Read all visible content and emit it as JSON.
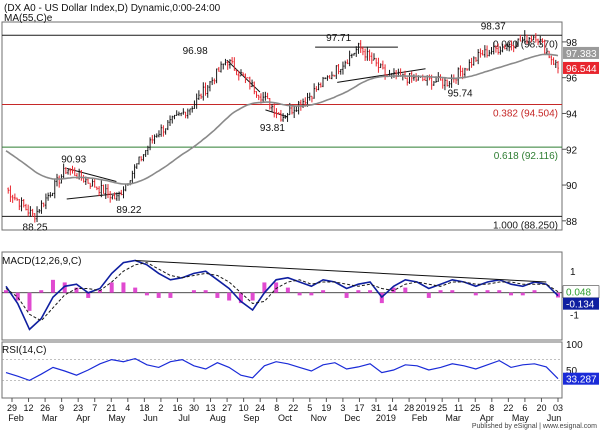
{
  "header": {
    "title": "(DX A0 - US Dollar Index,D) Dynamic,0:00-24:00",
    "ma_label": "MA(55,C)e"
  },
  "footer": {
    "published": "Published by eSignal | www.esignal.com"
  },
  "colors": {
    "up": "#1a1a1a",
    "down": "#e8262e",
    "ma": "#8a8a8a",
    "macd": "#0f1fa0",
    "signal": "#1a1a1a",
    "histogram": "#e04ad0",
    "rsi": "#1a2bd8",
    "fib_line_0": "#1a1a1a",
    "fib_line_382": "#c62828",
    "fib_line_618": "#2e7d32",
    "fib_line_1": "#1a1a1a",
    "last_price_bg": "#e8262e"
  },
  "chart_data": [
    {
      "type": "candlestick",
      "title": "(DX A0 - US Dollar Index,D) Dynamic,0:00-24:00",
      "overlay": "MA(55,C)e",
      "ylim": [
        87.6,
        99.0
      ],
      "ticks": [
        88.0,
        90.0,
        92.0,
        94.0,
        96.0,
        98.0
      ],
      "x_labels": [
        "29",
        "12",
        "26",
        "9",
        "23",
        "7",
        "21",
        "4",
        "18",
        "2",
        "16",
        "30",
        "13",
        "27",
        "10",
        "24",
        "8",
        "22",
        "5",
        "19",
        "3",
        "17",
        "31",
        "14",
        "28",
        "2019",
        "25",
        "11",
        "25",
        "8",
        "22",
        "6",
        "20",
        "03"
      ],
      "month_labels": [
        "Feb",
        "Mar",
        "Apr",
        "May",
        "Jun",
        "Jul",
        "Aug",
        "Sep",
        "Oct",
        "Nov",
        "Dec",
        "2019",
        "Feb",
        "Mar",
        "Apr",
        "May",
        "Jun"
      ],
      "price_labels": {
        "last": "96.544",
        "ma_value": "97.383"
      },
      "fibonacci": [
        {
          "label": "0.000 (98.370)",
          "value": 98.37
        },
        {
          "label": "0.382 (94.504)",
          "value": 94.504
        },
        {
          "label": "0.618 (92.116)",
          "value": 92.116
        },
        {
          "label": "1.000 (88.250)",
          "value": 88.25
        }
      ],
      "annotations": [
        {
          "text": "90.93",
          "value": 90.93
        },
        {
          "text": "89.22",
          "value": 89.22
        },
        {
          "text": "88.25",
          "value": 88.25
        },
        {
          "text": "96.98",
          "value": 96.98
        },
        {
          "text": "93.81",
          "value": 93.81
        },
        {
          "text": "97.71",
          "value": 97.71
        },
        {
          "text": "95.74",
          "value": 95.74
        },
        {
          "text": "98.37",
          "value": 98.37
        }
      ],
      "swing_points": [
        {
          "t": 0,
          "v": 89.8
        },
        {
          "t": 0.05,
          "v": 88.25
        },
        {
          "t": 0.11,
          "v": 90.93
        },
        {
          "t": 0.2,
          "v": 89.22
        },
        {
          "t": 0.27,
          "v": 92.8
        },
        {
          "t": 0.34,
          "v": 94.5
        },
        {
          "t": 0.4,
          "v": 96.98
        },
        {
          "t": 0.5,
          "v": 93.81
        },
        {
          "t": 0.55,
          "v": 95.0
        },
        {
          "t": 0.64,
          "v": 97.71
        },
        {
          "t": 0.69,
          "v": 96.1
        },
        {
          "t": 0.8,
          "v": 95.74
        },
        {
          "t": 0.86,
          "v": 97.3
        },
        {
          "t": 0.96,
          "v": 98.37
        },
        {
          "t": 1.0,
          "v": 96.54
        }
      ]
    },
    {
      "type": "line",
      "title": "MACD(12,26,9,C)",
      "ylim": [
        -2.1,
        1.8
      ],
      "ticks": [
        {
          "label": "1",
          "value": 1.0
        },
        {
          "label": "-1",
          "value": -1.0
        }
      ],
      "value_labels": {
        "signal": "0.048",
        "macd": "-0.134"
      },
      "series": [
        {
          "key": "macd",
          "values": [
            0.3,
            -0.5,
            -1.7,
            -1.2,
            -0.2,
            0.3,
            0.4,
            0.0,
            0.2,
            0.9,
            1.4,
            1.5,
            1.3,
            0.9,
            0.6,
            0.7,
            0.9,
            1.0,
            0.6,
            0.2,
            -0.4,
            -0.8,
            0.0,
            0.6,
            0.7,
            0.5,
            0.3,
            0.6,
            0.5,
            0.2,
            0.4,
            0.5,
            -0.2,
            0.3,
            0.6,
            0.5,
            0.2,
            0.4,
            0.6,
            0.5,
            0.3,
            0.5,
            0.6,
            0.4,
            0.3,
            0.5,
            0.4,
            -0.134
          ]
        },
        {
          "key": "signal",
          "values": [
            0.2,
            -0.2,
            -1.0,
            -1.3,
            -0.7,
            -0.1,
            0.2,
            0.2,
            0.1,
            0.5,
            1.0,
            1.3,
            1.4,
            1.1,
            0.8,
            0.7,
            0.8,
            0.9,
            0.8,
            0.5,
            0.0,
            -0.5,
            -0.4,
            0.2,
            0.5,
            0.6,
            0.4,
            0.5,
            0.5,
            0.4,
            0.3,
            0.4,
            0.2,
            0.1,
            0.4,
            0.5,
            0.4,
            0.3,
            0.5,
            0.5,
            0.4,
            0.4,
            0.5,
            0.5,
            0.4,
            0.4,
            0.4,
            0.048
          ]
        }
      ]
    },
    {
      "type": "line",
      "title": "RSI(14,C)",
      "ylim": [
        0,
        100
      ],
      "ticks": [
        100,
        50
      ],
      "guides": [
        70,
        30
      ],
      "value_label": "33.287",
      "series": [
        {
          "key": "rsi",
          "values": [
            45,
            38,
            30,
            42,
            55,
            48,
            40,
            50,
            62,
            70,
            66,
            72,
            60,
            55,
            66,
            70,
            58,
            52,
            64,
            55,
            40,
            35,
            58,
            66,
            62,
            55,
            48,
            60,
            64,
            52,
            56,
            62,
            45,
            50,
            60,
            58,
            50,
            55,
            62,
            58,
            52,
            60,
            68,
            55,
            60,
            62,
            56,
            33.287
          ]
        }
      ]
    }
  ]
}
